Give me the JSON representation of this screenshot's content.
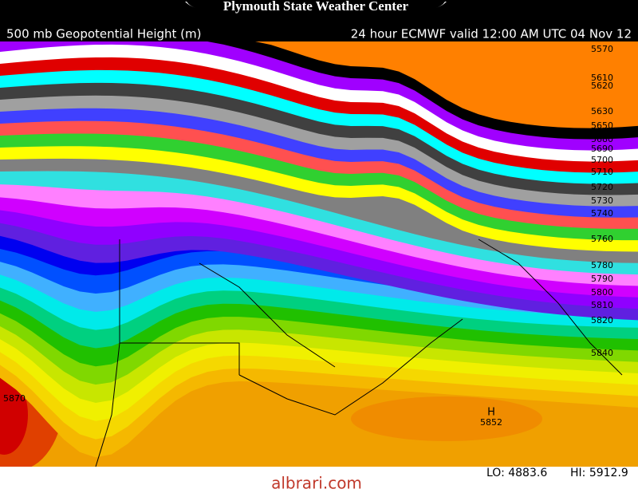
{
  "header": {
    "title": "Plymouth State Weather Center"
  },
  "map": {
    "variable": "500 mb Geopotential Height (m)",
    "valid": "24 hour ECMWF  valid 12:00 AM UTC 04 Nov 12",
    "contour_labels": [
      "5570",
      "5610",
      "5620",
      "5630",
      "5650",
      "5680",
      "5690",
      "5700",
      "5710",
      "5720",
      "5730",
      "5740",
      "5760",
      "5780",
      "5790",
      "5800",
      "5810",
      "5820",
      "5840",
      "5870"
    ],
    "high": {
      "label": "H",
      "value": "5852"
    },
    "low_value": "LO: 4883.6",
    "high_value": "HI: 5912.9"
  },
  "watermark": "albrari.com"
}
